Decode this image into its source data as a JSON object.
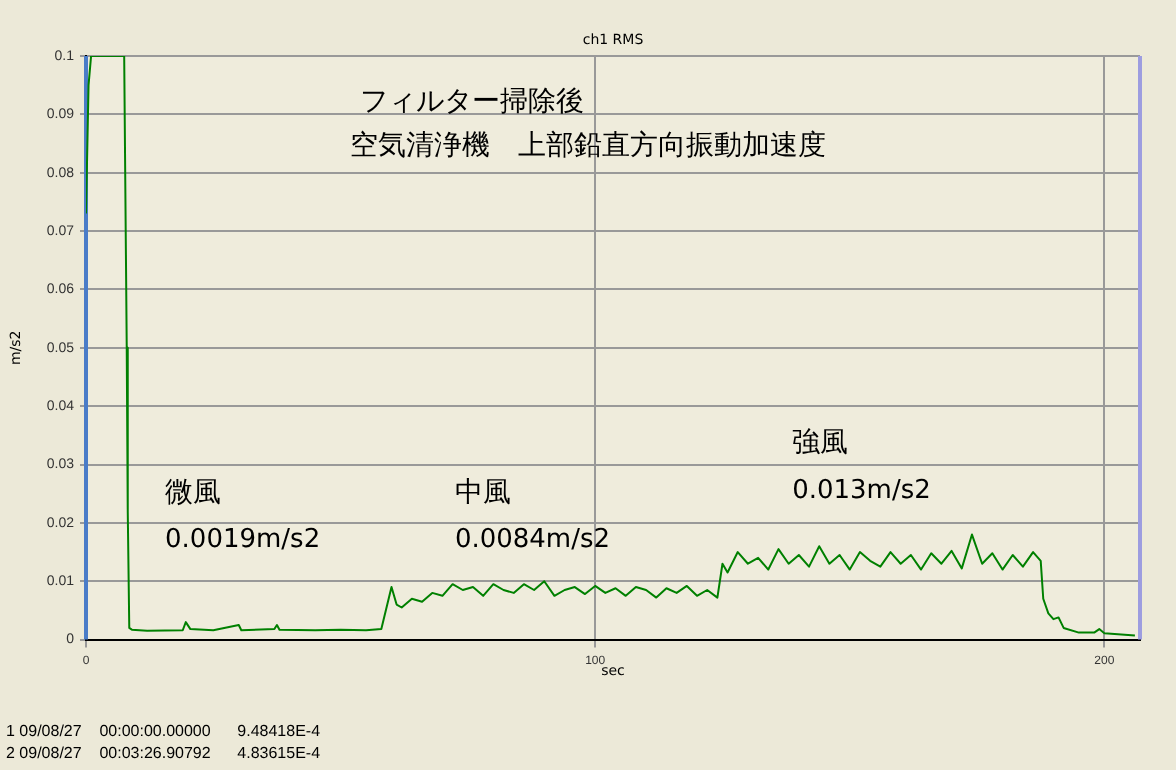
{
  "chart_data": {
    "type": "line",
    "title": "ch1 RMS",
    "xlabel": "sec",
    "ylabel": "m/s2",
    "x": [
      0,
      0.5,
      1,
      7.5,
      8,
      8.2,
      8.5,
      9,
      12,
      19,
      19.6,
      20.5,
      25,
      30,
      30.5,
      37,
      37.5,
      38,
      45,
      50,
      55,
      58,
      60,
      61,
      62,
      64,
      66,
      68,
      70,
      72,
      74,
      76,
      78,
      80,
      82,
      84,
      86,
      88,
      90,
      92,
      94,
      96,
      98,
      100,
      102,
      104,
      106,
      108,
      110,
      112,
      114,
      116,
      118,
      120,
      122,
      124,
      125,
      126,
      128,
      130,
      132,
      134,
      136,
      138,
      140,
      142,
      144,
      146,
      148,
      150,
      152,
      154,
      156,
      158,
      160,
      162,
      164,
      166,
      168,
      170,
      172,
      174,
      176,
      178,
      180,
      182,
      184,
      186,
      187.5,
      188,
      189,
      190,
      191,
      192,
      195,
      198,
      199,
      200,
      206
    ],
    "series": [
      {
        "color": "#008000",
        "values": [
          0.073,
          0.095,
          0.1,
          0.1,
          0.05,
          0.022,
          0.002,
          0.0017,
          0.0015,
          0.0016,
          0.003,
          0.0018,
          0.0016,
          0.0025,
          0.0016,
          0.0018,
          0.0025,
          0.0017,
          0.0016,
          0.0017,
          0.0016,
          0.0018,
          0.009,
          0.006,
          0.0055,
          0.007,
          0.0065,
          0.008,
          0.0075,
          0.0095,
          0.0085,
          0.009,
          0.0075,
          0.0095,
          0.0085,
          0.008,
          0.0095,
          0.0085,
          0.01,
          0.0075,
          0.0085,
          0.009,
          0.0078,
          0.0092,
          0.008,
          0.0088,
          0.0075,
          0.009,
          0.0085,
          0.0072,
          0.0088,
          0.008,
          0.0092,
          0.0075,
          0.0085,
          0.0072,
          0.013,
          0.0115,
          0.015,
          0.013,
          0.014,
          0.012,
          0.0155,
          0.013,
          0.0145,
          0.0125,
          0.016,
          0.013,
          0.0145,
          0.012,
          0.015,
          0.0135,
          0.0125,
          0.015,
          0.013,
          0.0145,
          0.012,
          0.0148,
          0.013,
          0.0152,
          0.0122,
          0.018,
          0.013,
          0.0148,
          0.012,
          0.0145,
          0.0125,
          0.015,
          0.0135,
          0.007,
          0.0045,
          0.0035,
          0.0038,
          0.002,
          0.0012,
          0.0012,
          0.0018,
          0.0011,
          0.0007
        ]
      }
    ],
    "xlim": [
      0,
      207
    ],
    "xticks": [
      0,
      100,
      200
    ],
    "ylim": [
      0,
      0.1
    ],
    "yticks": [
      0,
      0.01,
      0.02,
      0.03,
      0.04,
      0.05,
      0.06,
      0.07,
      0.08,
      0.09,
      0.1
    ],
    "grid": true,
    "marker": "none",
    "line_style": "solid",
    "legend": false,
    "ref_lines": [
      {
        "axis": "x",
        "value": 0,
        "color": "#4a7cc8"
      },
      {
        "axis": "x",
        "value": 207,
        "color": "#9d9de0"
      }
    ],
    "annotations": [
      "フィルター掃除後",
      "空気清浄機　上部鉛直方向振動加速度",
      "微風",
      "0.0019m/s2",
      "中風",
      "0.0084m/s2",
      "強風",
      "0.013m/s2",
      "1 09/08/27    00:00:00.00000      9.48418E-4",
      "2 09/08/27    00:03:26.90792      4.83615E-4"
    ]
  }
}
